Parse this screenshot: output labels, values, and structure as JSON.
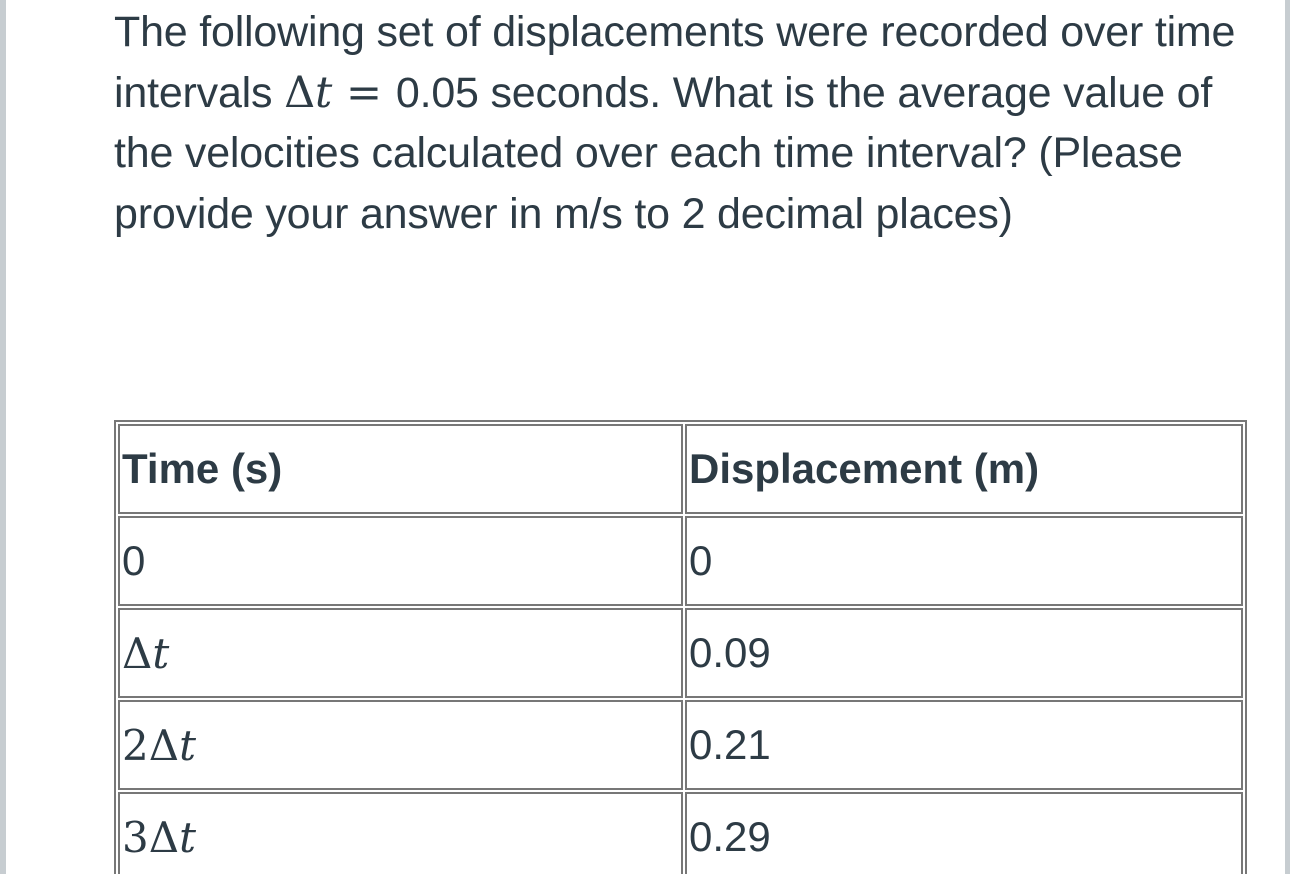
{
  "question": {
    "part1": "The following set of displacements were recorded over time intervals ",
    "math_delta": "Δ",
    "math_t": "t",
    "math_eq": "=",
    "part2": "0.05 seconds. What is the average value of the velocities calculated over each time interval? (Please provide your answer in m/s to 2 decimal places)"
  },
  "table": {
    "headers": [
      "Time (s)",
      "Displacement (m)"
    ],
    "rows": [
      {
        "time_coef": "",
        "time_plain": "0",
        "displacement": "0"
      },
      {
        "time_coef": "",
        "time_delta": "Δ",
        "time_t": "t",
        "displacement": "0.09"
      },
      {
        "time_coef": "2",
        "time_delta": "Δ",
        "time_t": "t",
        "displacement": "0.21"
      },
      {
        "time_coef": "3",
        "time_delta": "Δ",
        "time_t": "t",
        "displacement": "0.29"
      }
    ]
  }
}
